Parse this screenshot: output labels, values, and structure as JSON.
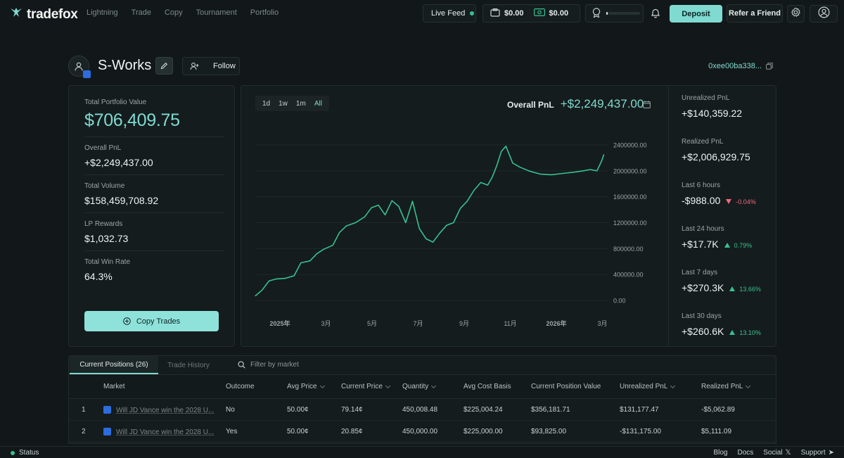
{
  "app": {
    "name": "tradefox"
  },
  "nav": {
    "items": [
      "Lightning",
      "Trade",
      "Copy",
      "Tournament",
      "Portfolio"
    ]
  },
  "header": {
    "live_feed": "Live Feed",
    "balance_primary": "$0.00",
    "balance_cash": "$0.00",
    "level_progress": 0.04,
    "deposit": "Deposit",
    "refer": "Refer a Friend"
  },
  "profile": {
    "name": "S-Works",
    "follow": "Follow",
    "address": "0xee00ba338..."
  },
  "summary": {
    "total_portfolio_label": "Total Portfolio Value",
    "total_portfolio_value": "$706,409.75",
    "overall_pnl_label": "Overall PnL",
    "overall_pnl_value": "+$2,249,437.00",
    "total_volume_label": "Total Volume",
    "total_volume_value": "$158,459,708.92",
    "lp_rewards_label": "LP Rewards",
    "lp_rewards_value": "$1,032.73",
    "win_rate_label": "Total Win Rate",
    "win_rate_value": "64.3%",
    "copy_trades": "Copy Trades"
  },
  "chart_panel": {
    "ranges": [
      "1d",
      "1w",
      "1m",
      "All"
    ],
    "active_range": "All",
    "pnl_label": "Overall PnL",
    "pnl_value": "+$2,249,437.00"
  },
  "chart_data": {
    "type": "line",
    "title": "",
    "xlabel": "",
    "ylabel": "",
    "x_tick_labels": [
      "2025年",
      "3月",
      "5月",
      "7月",
      "9月",
      "11月",
      "2026年",
      "3月"
    ],
    "y_tick_labels": [
      "2400000.00",
      "2000000.00",
      "1600000.00",
      "1200000.00",
      "800000.00",
      "400000.00",
      "0.00"
    ],
    "ylim": [
      0,
      2400000
    ],
    "xlim": [
      0,
      15.5
    ],
    "grid": true,
    "color": "#35c28e",
    "series": [
      {
        "x": [
          0,
          0.3,
          0.6,
          0.9,
          1.3,
          1.7,
          2.0,
          2.4,
          2.7,
          3.0,
          3.4,
          3.7,
          4.0,
          4.4,
          4.8,
          5.1,
          5.4,
          5.7,
          6.0,
          6.3,
          6.6,
          6.9,
          7.2,
          7.5,
          7.8,
          8.1,
          8.4,
          8.7,
          9.0,
          9.3,
          9.6,
          9.9,
          10.2,
          10.4,
          10.6,
          10.8,
          11.0,
          11.3,
          11.6,
          12.0,
          12.5,
          13.0,
          13.5,
          14.0,
          14.4,
          14.7,
          15.0,
          15.2,
          15.3
        ],
        "y": [
          70000,
          160000,
          300000,
          330000,
          340000,
          380000,
          580000,
          610000,
          720000,
          790000,
          850000,
          1050000,
          1150000,
          1200000,
          1290000,
          1430000,
          1470000,
          1320000,
          1540000,
          1450000,
          1200000,
          1530000,
          1110000,
          950000,
          900000,
          1040000,
          1160000,
          1200000,
          1420000,
          1530000,
          1700000,
          1820000,
          1780000,
          1900000,
          2080000,
          2300000,
          2380000,
          2120000,
          2060000,
          2000000,
          1950000,
          1940000,
          1960000,
          1980000,
          2000000,
          2020000,
          2000000,
          2150000,
          2250000
        ]
      }
    ]
  },
  "periods": {
    "unrealized_label": "Unrealized PnL",
    "unrealized_value": "+$140,359.22",
    "realized_label": "Realized PnL",
    "realized_value": "+$2,006,929.75",
    "h6_label": "Last 6 hours",
    "h6_value": "-$988.00",
    "h6_change": "-0.04%",
    "h24_label": "Last 24 hours",
    "h24_value": "+$17.7K",
    "h24_change": "0.79%",
    "d7_label": "Last 7 days",
    "d7_value": "+$270.3K",
    "d7_change": "13.66%",
    "d30_label": "Last 30 days",
    "d30_value": "+$260.6K",
    "d30_change": "13.10%"
  },
  "positions": {
    "tab_current": "Current Positions (26)",
    "tab_history": "Trade History",
    "filter_placeholder": "Filter by market",
    "columns": [
      "Market",
      "Outcome",
      "Avg Price",
      "Current Price",
      "Quantity",
      "Avg Cost Basis",
      "Current Position Value",
      "Unrealized PnL",
      "Realized PnL"
    ],
    "rows": [
      {
        "index": "1",
        "market": "Will JD Vance win the 2028 U...",
        "outcome": "No",
        "avg_price": "50.00¢",
        "current_price": "79.14¢",
        "quantity": "450,008.48",
        "avg_cost_basis": "$225,004.24",
        "position_value": "$356,181.71",
        "unrealized_pnl": "$131,177.47",
        "realized_pnl": "-$5,062.89"
      },
      {
        "index": "2",
        "market": "Will JD Vance win the 2028 U...",
        "outcome": "Yes",
        "avg_price": "50.00¢",
        "current_price": "20.85¢",
        "quantity": "450,000.00",
        "avg_cost_basis": "$225,000.00",
        "position_value": "$93,825.00",
        "unrealized_pnl": "-$131,175.00",
        "realized_pnl": "$5,111.09"
      }
    ]
  },
  "footer": {
    "status": "Status",
    "links": [
      "Blog",
      "Docs",
      "Social",
      "Support"
    ]
  },
  "colors": {
    "accent": "#7fdad1",
    "positive": "#35c28e",
    "negative": "#f06a7a",
    "background": "#121819"
  }
}
